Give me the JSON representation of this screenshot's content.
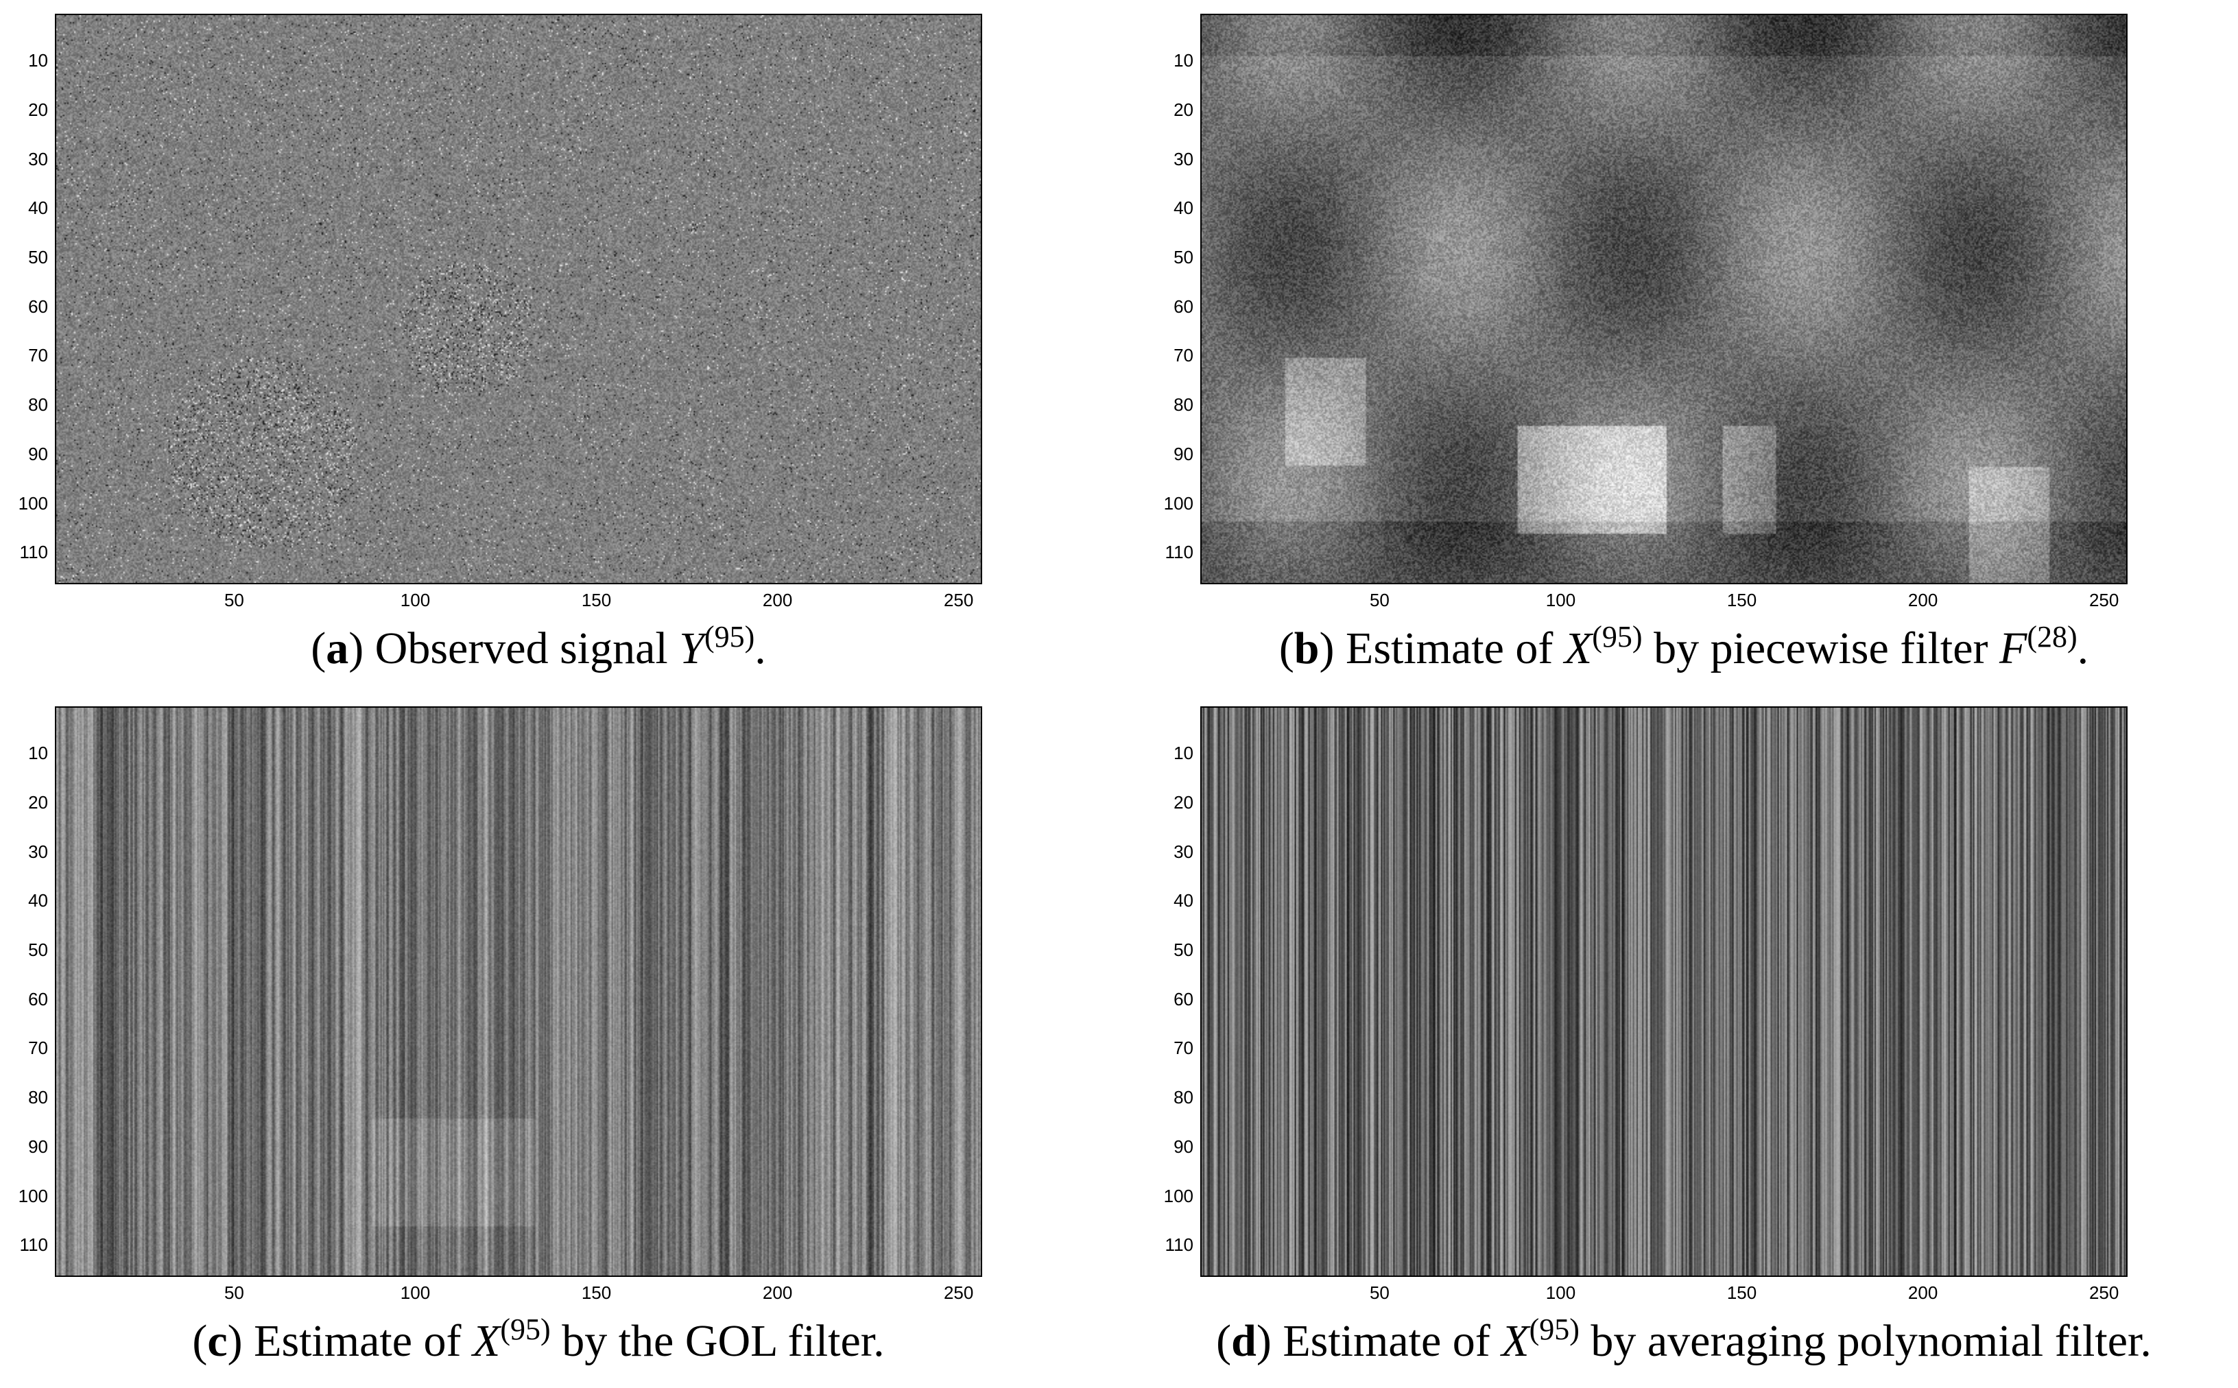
{
  "panels": [
    {
      "id": "a",
      "label": "a",
      "caption_pre": " Observed signal ",
      "math_symbol": "Y",
      "superscript": "(95)",
      "caption_post": ".",
      "pattern": "noise",
      "yticks": [
        10,
        20,
        30,
        40,
        50,
        60,
        70,
        80,
        90,
        100,
        110
      ],
      "xticks": [
        50,
        100,
        150,
        200,
        250
      ]
    },
    {
      "id": "b",
      "label": "b",
      "caption_pre": " Estimate of ",
      "math_symbol": "X",
      "superscript": "(95)",
      "caption_mid": " by piecewise filter ",
      "math_symbol2": "F",
      "superscript2": "(28)",
      "caption_post": ".",
      "pattern": "scene",
      "yticks": [
        10,
        20,
        30,
        40,
        50,
        60,
        70,
        80,
        90,
        100,
        110
      ],
      "xticks": [
        50,
        100,
        150,
        200,
        250
      ]
    },
    {
      "id": "c",
      "label": "c",
      "caption_pre": " Estimate of ",
      "math_symbol": "X",
      "superscript": "(95)",
      "caption_mid": " by the GOL filter.",
      "caption_post": "",
      "pattern": "stripes-soft",
      "yticks": [
        10,
        20,
        30,
        40,
        50,
        60,
        70,
        80,
        90,
        100,
        110
      ],
      "xticks": [
        50,
        100,
        150,
        200,
        250
      ]
    },
    {
      "id": "d",
      "label": "d",
      "caption_pre": " Estimate of ",
      "math_symbol": "X",
      "superscript": "(95)",
      "caption_mid": " by averaging polynomial filter.",
      "caption_post": "",
      "pattern": "stripes-hard",
      "yticks": [
        10,
        20,
        30,
        40,
        50,
        60,
        70,
        80,
        90,
        100,
        110
      ],
      "xticks": [
        50,
        100,
        150,
        200,
        250
      ]
    }
  ]
}
